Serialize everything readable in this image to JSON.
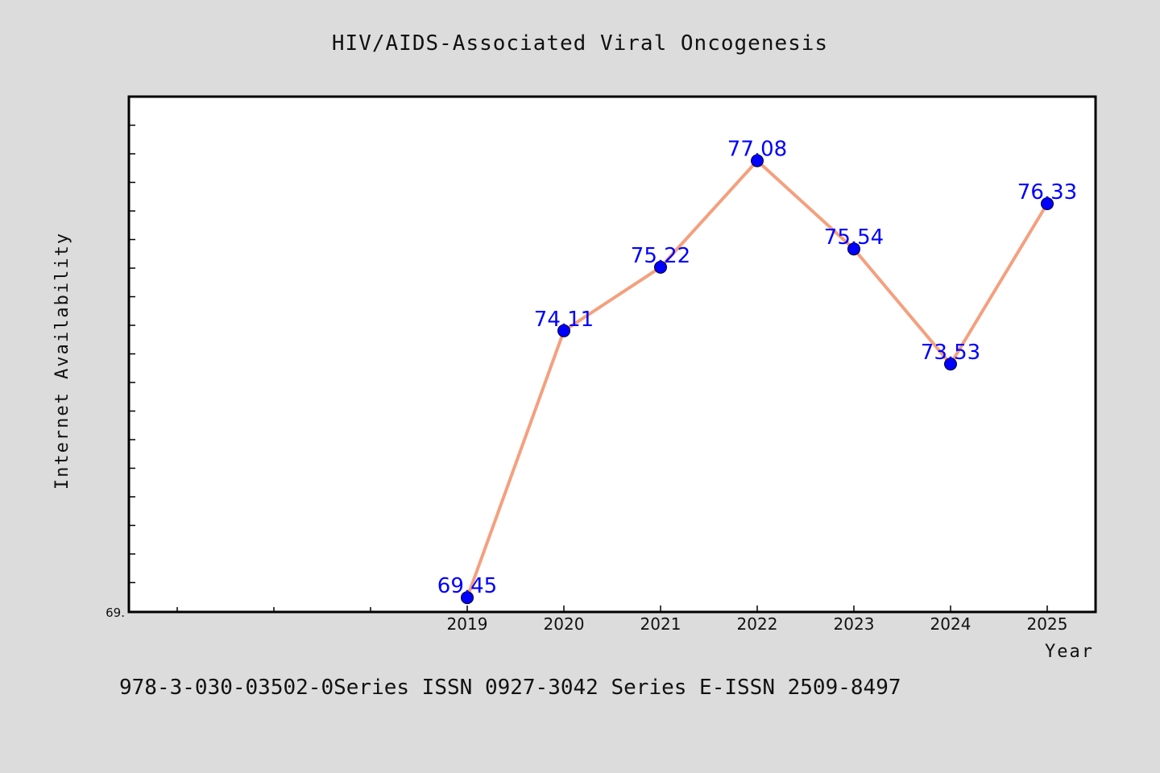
{
  "chart_data": {
    "type": "line",
    "title": "HIV/AIDS-Associated Viral Oncogenesis",
    "xlabel": "Year",
    "ylabel": "Internet Availability",
    "x": [
      "2019",
      "2020",
      "2021",
      "2022",
      "2023",
      "2024",
      "2025"
    ],
    "series": [
      {
        "values": [
          69.45,
          74.11,
          75.22,
          77.08,
          75.54,
          73.53,
          76.33
        ]
      }
    ],
    "ylim": [
      69.2,
      78.2
    ],
    "y_tick_label_min": "69.",
    "grid": false,
    "line_color": "#f4a07e",
    "marker_color": "#0000ff",
    "label_color": "#0000ff"
  },
  "footnote": "978-3-030-03502-0Series ISSN 0927-3042 Series E-ISSN 2509-8497",
  "colors": {
    "background": "#dcdcdc",
    "plot_background": "#ffffff"
  }
}
